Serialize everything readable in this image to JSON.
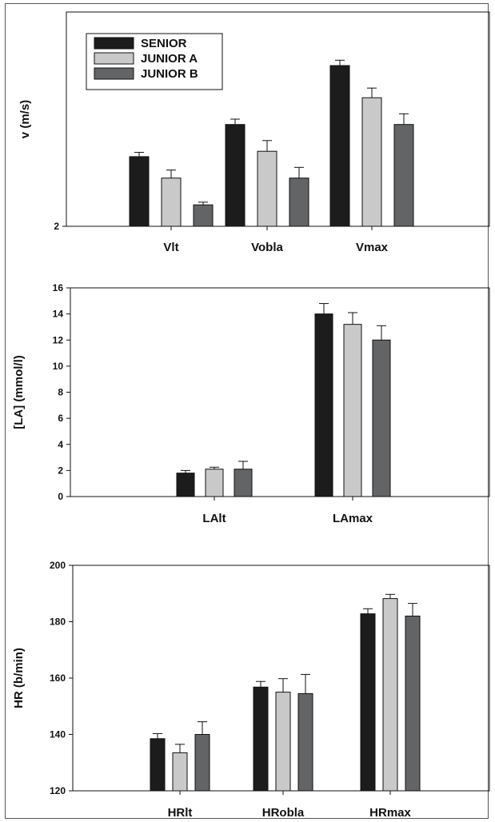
{
  "legend": [
    "SENIOR",
    "JUNIOR A",
    "JUNIOR B"
  ],
  "colors": {
    "SENIOR": "#1c1c1c",
    "JUNIOR A": "#c9c9c9",
    "JUNIOR B": "#626466",
    "error_bar": "#111111",
    "axis": "#111111"
  },
  "chart_data": [
    {
      "type": "bar",
      "ylabel": "v (m/s)",
      "ylim": [
        2,
        6
      ],
      "yticks": [
        2
      ],
      "categories": [
        "Vlt",
        "Vobla",
        "Vmax"
      ],
      "series": [
        {
          "name": "SENIOR",
          "values": [
            3.3,
            3.9,
            5.0
          ],
          "errors": [
            0.08,
            0.1,
            0.1
          ]
        },
        {
          "name": "JUNIOR A",
          "values": [
            2.9,
            3.4,
            4.4
          ],
          "errors": [
            0.15,
            0.2,
            0.18
          ]
        },
        {
          "name": "JUNIOR B",
          "values": [
            2.4,
            2.9,
            3.9
          ],
          "errors": [
            0.05,
            0.2,
            0.2
          ]
        }
      ],
      "legend_position": "top-left"
    },
    {
      "type": "bar",
      "ylabel": "[LA] (mmol/l)",
      "ylim": [
        0,
        16
      ],
      "yticks": [
        0,
        2,
        4,
        6,
        8,
        10,
        12,
        14,
        16
      ],
      "categories": [
        "LAlt",
        "LAmax"
      ],
      "series": [
        {
          "name": "SENIOR",
          "values": [
            1.8,
            14.0
          ],
          "errors": [
            0.2,
            0.8
          ]
        },
        {
          "name": "JUNIOR A",
          "values": [
            2.1,
            13.2
          ],
          "errors": [
            0.15,
            0.9
          ]
        },
        {
          "name": "JUNIOR B",
          "values": [
            2.1,
            12.0
          ],
          "errors": [
            0.6,
            1.1
          ]
        }
      ]
    },
    {
      "type": "bar",
      "ylabel": "HR (b/min)",
      "ylim": [
        120,
        200
      ],
      "yticks": [
        120,
        140,
        160,
        180,
        200
      ],
      "categories": [
        "HRlt",
        "HRobla",
        "HRmax"
      ],
      "series": [
        {
          "name": "SENIOR",
          "values": [
            138.5,
            156.8,
            182.8
          ],
          "errors": [
            1.8,
            2.0,
            1.8
          ]
        },
        {
          "name": "JUNIOR A",
          "values": [
            133.5,
            155.0,
            188.2
          ],
          "errors": [
            3.0,
            4.8,
            1.5
          ]
        },
        {
          "name": "JUNIOR B",
          "values": [
            140.0,
            154.5,
            182.0
          ],
          "errors": [
            4.5,
            6.8,
            4.5
          ]
        }
      ]
    }
  ]
}
